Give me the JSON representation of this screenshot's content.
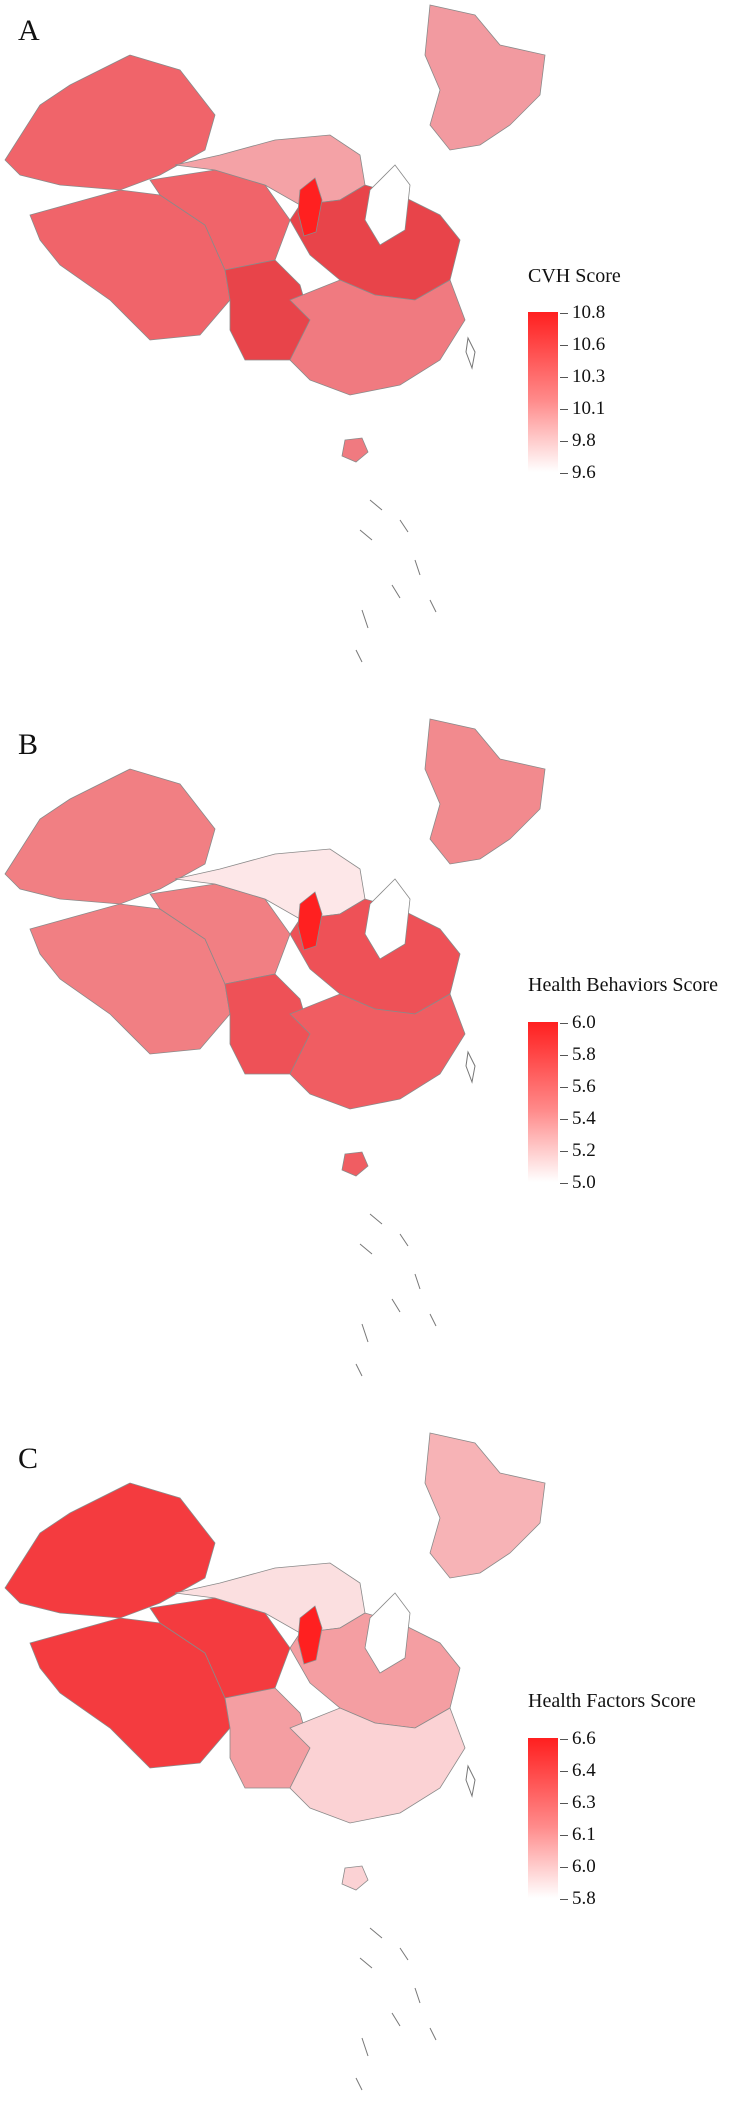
{
  "panels": [
    {
      "letter": "A",
      "legend_title": "CVH Score",
      "ticks": [
        "10.8",
        "10.6",
        "10.3",
        "10.1",
        "9.8",
        "9.6"
      ],
      "colors": {
        "west": "#f0646a",
        "north": "#f4a2a6",
        "northeast": "#f29aa0",
        "central": "#e8444a",
        "south": "#f07a80",
        "hotspot": "#ff2020",
        "lowest": "#ffffff"
      }
    },
    {
      "letter": "B",
      "legend_title": "Health Behaviors Score",
      "ticks": [
        "6.0",
        "5.8",
        "5.6",
        "5.4",
        "5.2",
        "5.0"
      ],
      "colors": {
        "west": "#f17f83",
        "north": "#fde7e8",
        "northeast": "#f28a8e",
        "central": "#ee5157",
        "south": "#f05d62",
        "hotspot": "#ff2020",
        "lowest": "#ffffff"
      }
    },
    {
      "letter": "C",
      "legend_title": "Health Factors Score",
      "ticks": [
        "6.6",
        "6.4",
        "6.3",
        "6.1",
        "6.0",
        "5.8"
      ],
      "colors": {
        "west": "#f43b3f",
        "north": "#fbdfe0",
        "northeast": "#f7b3b6",
        "central": "#f49ea2",
        "south": "#fbd2d4",
        "hotspot": "#ff2020",
        "lowest": "#ffffff"
      }
    }
  ]
}
